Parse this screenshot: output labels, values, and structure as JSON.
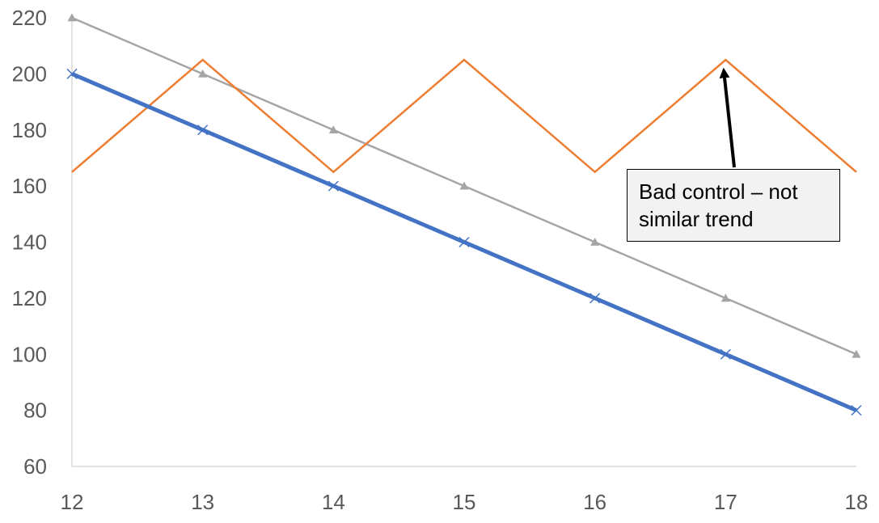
{
  "chart_data": {
    "type": "line",
    "x": [
      12,
      13,
      14,
      15,
      16,
      17,
      18
    ],
    "xlim": [
      12,
      18
    ],
    "ylim": [
      60,
      220
    ],
    "y_ticks": [
      60,
      80,
      100,
      120,
      140,
      160,
      180,
      200,
      220
    ],
    "x_ticks": [
      12,
      13,
      14,
      15,
      16,
      17,
      18
    ],
    "grid": false,
    "legend": "none",
    "series": [
      {
        "values": [
          200,
          180,
          160,
          140,
          120,
          100,
          80
        ],
        "color": "#4472c4",
        "marker": "x"
      },
      {
        "values": [
          165,
          205,
          165,
          205,
          165,
          205,
          165
        ],
        "color": "#ed7d31",
        "marker": "none"
      },
      {
        "values": [
          220,
          200,
          180,
          160,
          140,
          120,
          100
        ],
        "color": "#a5a5a5",
        "marker": "triangle"
      }
    ],
    "annotation": {
      "text": "Bad control – not similar trend",
      "target_x": 17,
      "target_y": 205
    }
  }
}
